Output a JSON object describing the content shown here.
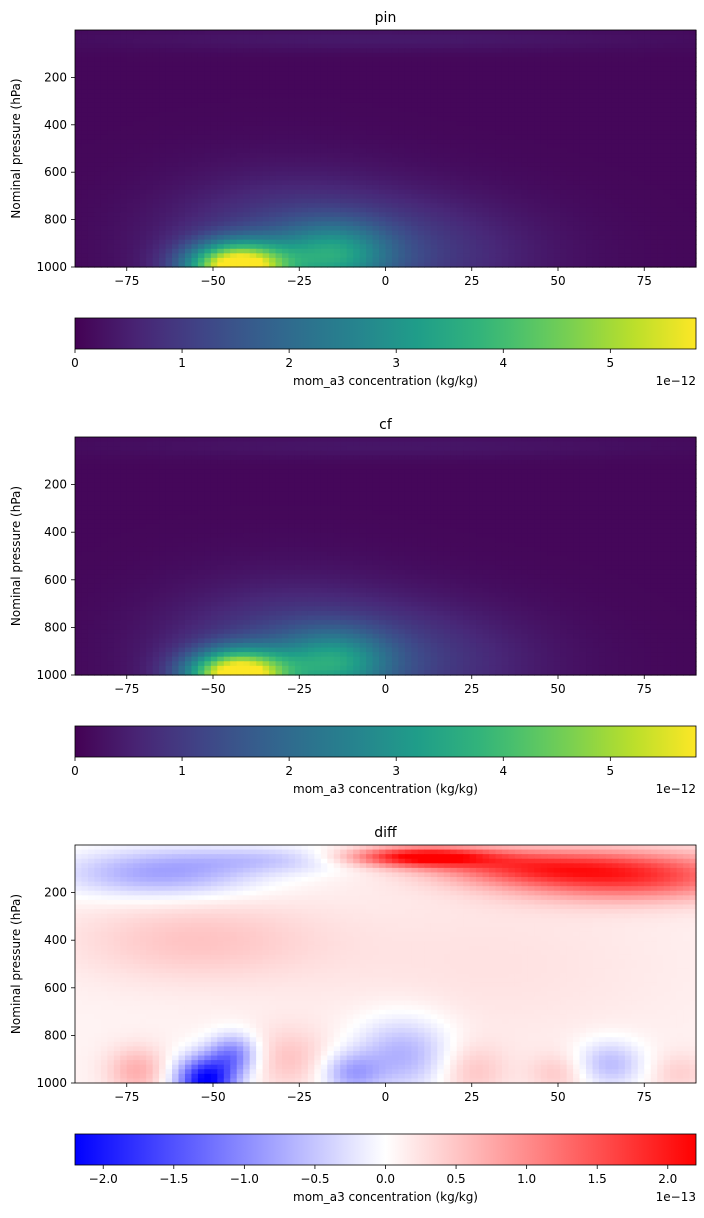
{
  "chart_data": [
    {
      "type": "heatmap",
      "title": "pin",
      "xlabel": "",
      "ylabel": "Nominal pressure (hPa)",
      "xlim": [
        -90,
        90
      ],
      "ylim": [
        1000,
        0
      ],
      "xticks": [
        -75,
        -50,
        -25,
        0,
        25,
        50,
        75
      ],
      "yticks": [
        200,
        400,
        600,
        800,
        1000
      ],
      "colormap": "viridis",
      "field": {
        "background": 0.1,
        "blobs": [
          {
            "lat": -43,
            "p": 1000,
            "slat": 10,
            "sp": 70,
            "amp": 5.7
          },
          {
            "lat": -15,
            "p": 950,
            "slat": 11,
            "sp": 90,
            "amp": 2.0
          },
          {
            "lat": 0,
            "p": 950,
            "slat": 30,
            "sp": 170,
            "amp": 0.9
          },
          {
            "lat": -30,
            "p": 900,
            "slat": 25,
            "sp": 200,
            "amp": 0.8
          },
          {
            "lat": 0,
            "p": 40,
            "slat": 60,
            "sp": 35,
            "amp": 0.3
          }
        ]
      },
      "colorbar": {
        "label": "mom_a3 concentration (kg/kg)",
        "min": 0,
        "max": 5.8,
        "ticks": [
          0,
          1,
          2,
          3,
          4,
          5
        ],
        "offset_text": "1e−12"
      }
    },
    {
      "type": "heatmap",
      "title": "cf",
      "xlabel": "",
      "ylabel": "Nominal pressure (hPa)",
      "xlim": [
        -90,
        90
      ],
      "ylim": [
        1000,
        0
      ],
      "xticks": [
        -75,
        -50,
        -25,
        0,
        25,
        50,
        75
      ],
      "yticks": [
        200,
        400,
        600,
        800,
        1000
      ],
      "colormap": "viridis",
      "field": {
        "background": 0.1,
        "blobs": [
          {
            "lat": -43,
            "p": 1000,
            "slat": 10,
            "sp": 70,
            "amp": 5.7
          },
          {
            "lat": -15,
            "p": 950,
            "slat": 11,
            "sp": 90,
            "amp": 2.0
          },
          {
            "lat": 0,
            "p": 950,
            "slat": 30,
            "sp": 170,
            "amp": 0.9
          },
          {
            "lat": -30,
            "p": 900,
            "slat": 25,
            "sp": 200,
            "amp": 0.8
          },
          {
            "lat": 0,
            "p": 40,
            "slat": 60,
            "sp": 35,
            "amp": 0.25
          }
        ]
      },
      "colorbar": {
        "label": "mom_a3 concentration (kg/kg)",
        "min": 0,
        "max": 5.8,
        "ticks": [
          0,
          1,
          2,
          3,
          4,
          5
        ],
        "offset_text": "1e−12"
      }
    },
    {
      "type": "heatmap",
      "title": "diff",
      "xlabel": "",
      "ylabel": "Nominal pressure (hPa)",
      "xlim": [
        -90,
        90
      ],
      "ylim": [
        1000,
        0
      ],
      "xticks": [
        -75,
        -50,
        -25,
        0,
        25,
        50,
        75
      ],
      "yticks": [
        200,
        400,
        600,
        800,
        1000
      ],
      "colormap": "bwr",
      "field": {
        "background": 0.1,
        "blobs": [
          {
            "lat": 10,
            "p": 50,
            "slat": 15,
            "sp": 30,
            "amp": 2.1
          },
          {
            "lat": 70,
            "p": 130,
            "slat": 25,
            "sp": 70,
            "amp": 1.6
          },
          {
            "lat": 40,
            "p": 90,
            "slat": 20,
            "sp": 50,
            "amp": 1.0
          },
          {
            "lat": -65,
            "p": 120,
            "slat": 20,
            "sp": 70,
            "amp": -0.9
          },
          {
            "lat": -30,
            "p": 60,
            "slat": 20,
            "sp": 40,
            "amp": -0.5
          },
          {
            "lat": -55,
            "p": 400,
            "slat": 25,
            "sp": 120,
            "amp": 0.4
          },
          {
            "lat": 30,
            "p": 500,
            "slat": 40,
            "sp": 250,
            "amp": 0.15
          },
          {
            "lat": -52,
            "p": 990,
            "slat": 6,
            "sp": 70,
            "amp": -2.3
          },
          {
            "lat": -44,
            "p": 880,
            "slat": 5,
            "sp": 60,
            "amp": -1.1
          },
          {
            "lat": -72,
            "p": 950,
            "slat": 6,
            "sp": 70,
            "amp": 0.6
          },
          {
            "lat": -28,
            "p": 900,
            "slat": 8,
            "sp": 90,
            "amp": 0.4
          },
          {
            "lat": -10,
            "p": 960,
            "slat": 6,
            "sp": 60,
            "amp": -0.8
          },
          {
            "lat": 5,
            "p": 880,
            "slat": 10,
            "sp": 110,
            "amp": -0.8
          },
          {
            "lat": 25,
            "p": 950,
            "slat": 7,
            "sp": 80,
            "amp": 0.4
          },
          {
            "lat": 65,
            "p": 920,
            "slat": 7,
            "sp": 70,
            "amp": -0.7
          },
          {
            "lat": 50,
            "p": 960,
            "slat": 6,
            "sp": 60,
            "amp": 0.35
          },
          {
            "lat": 85,
            "p": 960,
            "slat": 6,
            "sp": 60,
            "amp": 0.3
          }
        ]
      },
      "colorbar": {
        "label": "mom_a3 concentration (kg/kg)",
        "min": -2.2,
        "max": 2.2,
        "ticks": [
          -2.0,
          -1.5,
          -1.0,
          -0.5,
          0.0,
          0.5,
          1.0,
          1.5,
          2.0
        ],
        "tick_labels": [
          "−2.0",
          "−1.5",
          "−1.0",
          "−0.5",
          "0.0",
          "0.5",
          "1.0",
          "1.5",
          "2.0"
        ],
        "offset_text": "1e−13"
      }
    }
  ]
}
